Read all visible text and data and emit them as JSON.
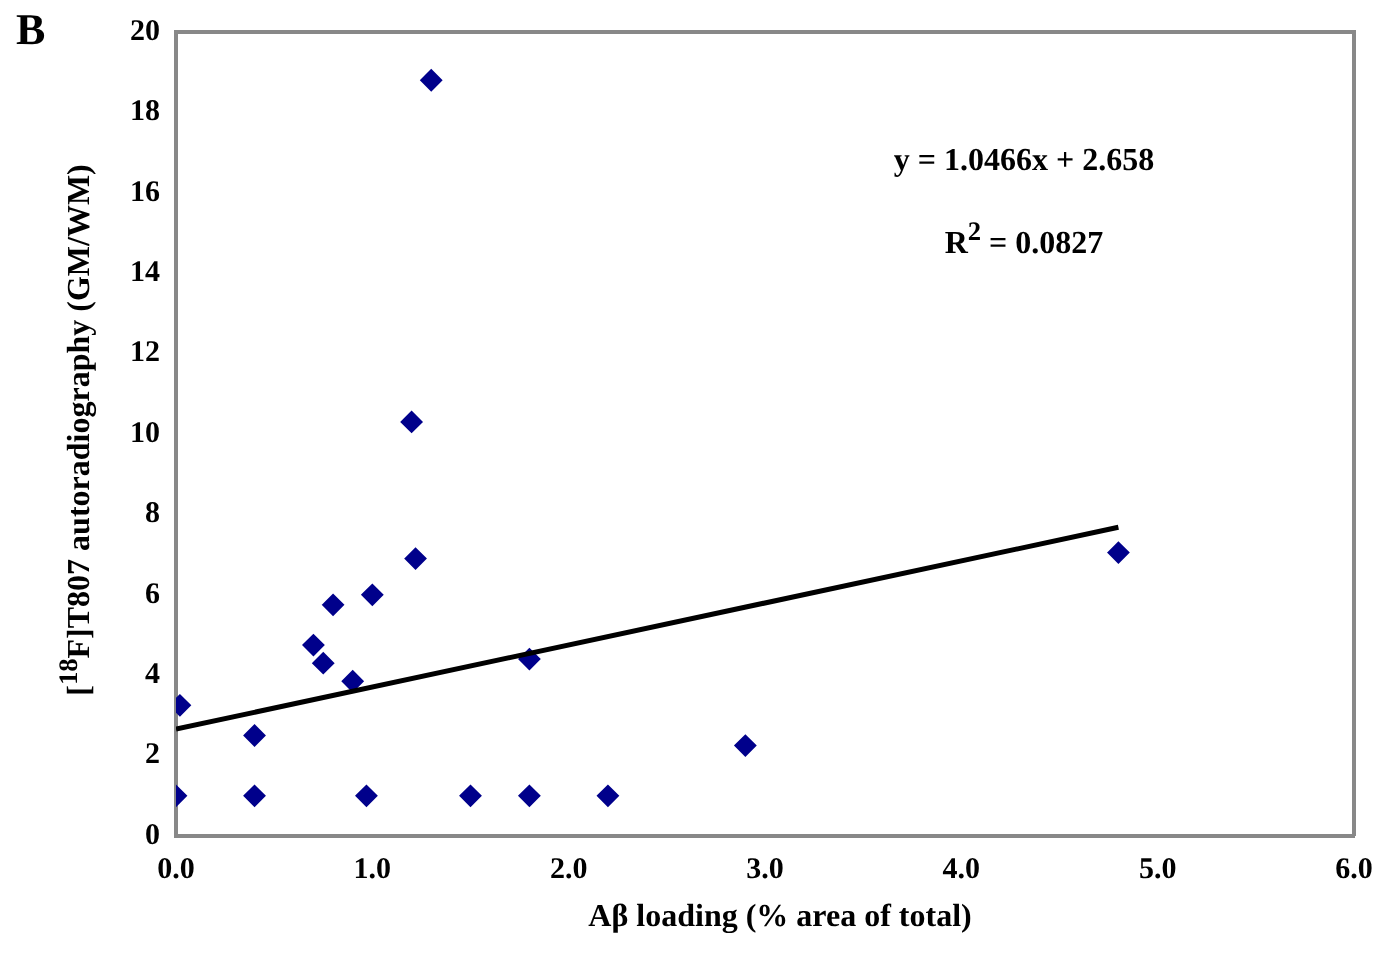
{
  "chart_data": {
    "type": "scatter",
    "xlabel": "Aβ loading (% area of total)",
    "ylabel": "[$^{18}$F]T807 autoradiography (GM/WM)",
    "annotations": [
      "B",
      "y = 1.0466x + 2.658",
      "R$^{2}$ = 0.0827"
    ],
    "x": [
      0,
      0.02,
      0.4,
      0.4,
      0.7,
      0.75,
      0.8,
      0.9,
      0.97,
      1.0,
      1.2,
      1.22,
      1.3,
      1.5,
      1.8,
      1.8,
      2.2,
      2.9,
      4.8
    ],
    "series": [
      {
        "color": "#00008b",
        "marker": "diamond",
        "values": [
          1,
          3.25,
          2.5,
          1,
          4.75,
          4.3,
          5.75,
          3.85,
          1,
          6.0,
          10.3,
          6.9,
          18.8,
          1,
          4.4,
          1,
          1,
          2.25,
          7.05
        ]
      },
      {
        "type": "line",
        "color": "#000000",
        "marker": "none",
        "line_style": "solid",
        "x": [
          0,
          4.8
        ],
        "values": [
          2.66,
          7.68
        ]
      }
    ],
    "xlim": [
      0,
      6
    ],
    "xticks": [
      {
        "value": 0,
        "label": "0.0"
      },
      {
        "value": 1,
        "label": "1.0"
      },
      {
        "value": 2,
        "label": "2.0"
      },
      {
        "value": 3,
        "label": "3.0"
      },
      {
        "value": 4,
        "label": "4.0"
      },
      {
        "value": 5,
        "label": "5.0"
      },
      {
        "value": 6,
        "label": "6.0"
      }
    ],
    "ylim": [
      0,
      20
    ],
    "yticks": [
      0,
      2,
      4,
      6,
      8,
      10,
      12,
      14,
      16,
      18,
      20
    ],
    "grid": false,
    "legend": false
  }
}
